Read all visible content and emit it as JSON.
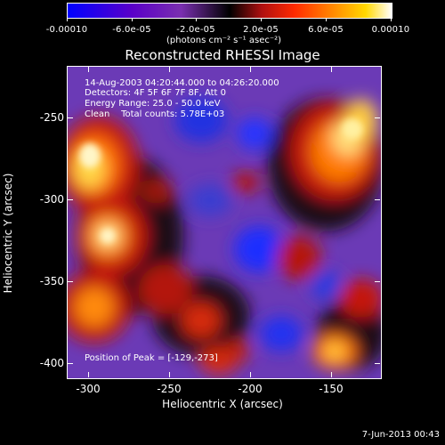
{
  "colorbar": {
    "tick_labels": [
      "-0.00010",
      "-6.0e-05",
      "-2.0e-05",
      "2.0e-05",
      "6.0e-05",
      "0.00010"
    ],
    "units": "(photons cm⁻² s⁻¹ asec⁻²)"
  },
  "title": "Reconstructed RHESSI Image",
  "info": {
    "line1": "14-Aug-2003 04:20:44.000 to 04:26:20.000",
    "line2": "Detectors: 4F 5F 6F 7F 8F, Att 0",
    "line3": "Energy Range: 25.0 - 50.0 keV",
    "line4": "Clean    Total counts: 5.78E+03",
    "peak": "Position of Peak = [-129,-273]"
  },
  "axes": {
    "xlabel": "Heliocentric X (arcsec)",
    "ylabel": "Heliocentric Y (arcsec)",
    "x_ticks": [
      "-300",
      "-250",
      "-200",
      "-150"
    ],
    "y_ticks": [
      "-250",
      "-300",
      "-350",
      "-400"
    ]
  },
  "footer": "7-Jun-2013 00:43"
}
